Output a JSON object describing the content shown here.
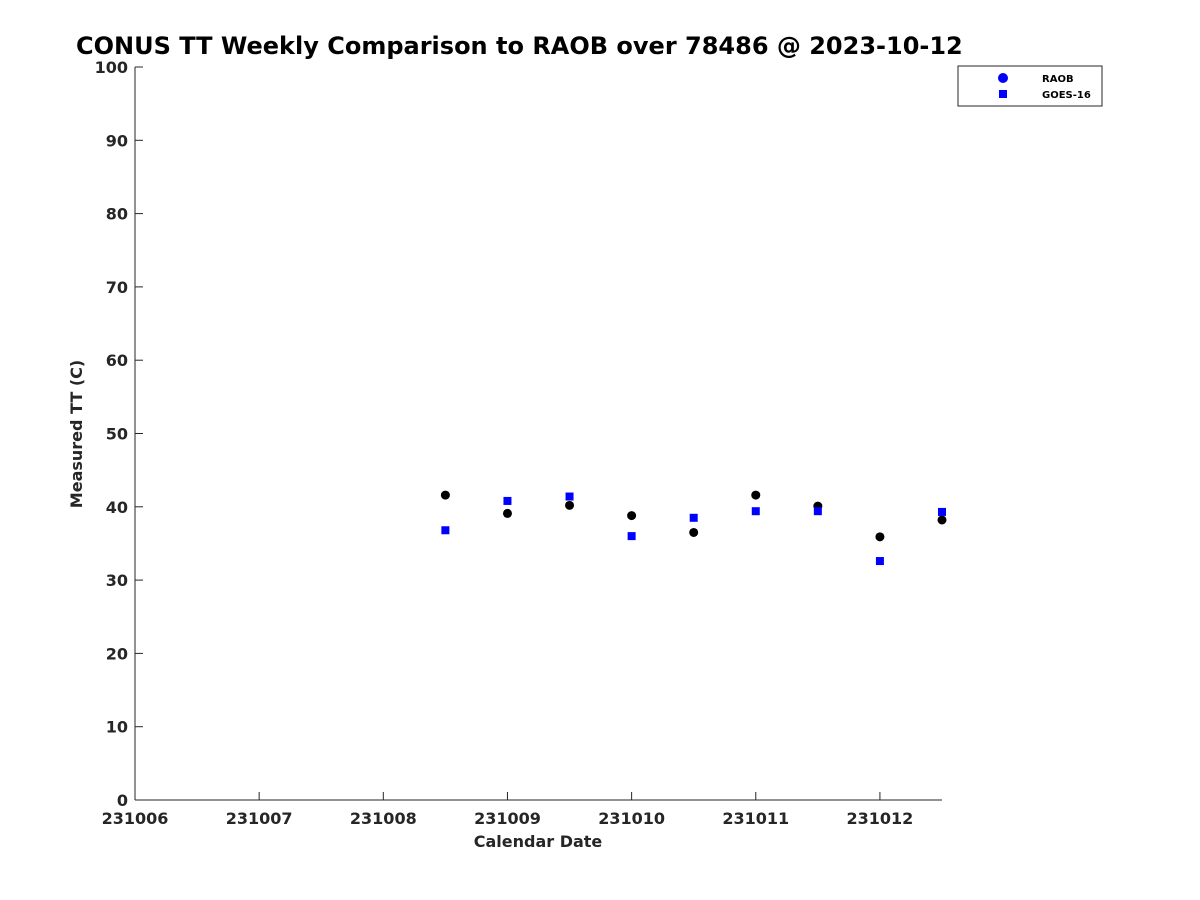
{
  "chart_data": {
    "type": "scatter",
    "title": "CONUS TT Weekly Comparison to RAOB over 78486 @ 2023-10-12",
    "xlabel": "Calendar Date",
    "ylabel": "Measured TT (C)",
    "xlim": [
      "231006",
      "231012.5"
    ],
    "ylim": [
      0,
      100
    ],
    "x_ticks": [
      "231006",
      "231007",
      "231008",
      "231009",
      "231010",
      "231011",
      "231012"
    ],
    "y_ticks": [
      0,
      10,
      20,
      30,
      40,
      50,
      60,
      70,
      80,
      90,
      100
    ],
    "grid": false,
    "legend_position": "top-right",
    "series": [
      {
        "name": "RAOB",
        "marker": "circle",
        "color": "#000000",
        "legend_color": "#0000ff",
        "points": [
          {
            "x": "231008.5",
            "y": 41.6
          },
          {
            "x": "231009.0",
            "y": 39.1
          },
          {
            "x": "231009.5",
            "y": 40.2
          },
          {
            "x": "231010.0",
            "y": 38.8
          },
          {
            "x": "231010.5",
            "y": 36.5
          },
          {
            "x": "231011.0",
            "y": 41.6
          },
          {
            "x": "231011.5",
            "y": 40.1
          },
          {
            "x": "231012.0",
            "y": 35.9
          },
          {
            "x": "231012.5",
            "y": 38.2
          }
        ]
      },
      {
        "name": "GOES-16",
        "marker": "square",
        "color": "#0000ff",
        "legend_color": "#0000ff",
        "points": [
          {
            "x": "231008.5",
            "y": 36.8
          },
          {
            "x": "231009.0",
            "y": 40.8
          },
          {
            "x": "231009.5",
            "y": 41.4
          },
          {
            "x": "231010.0",
            "y": 36.0
          },
          {
            "x": "231010.5",
            "y": 38.5
          },
          {
            "x": "231011.0",
            "y": 39.4
          },
          {
            "x": "231011.5",
            "y": 39.4
          },
          {
            "x": "231012.0",
            "y": 32.6
          },
          {
            "x": "231012.5",
            "y": 39.3
          }
        ]
      }
    ]
  }
}
